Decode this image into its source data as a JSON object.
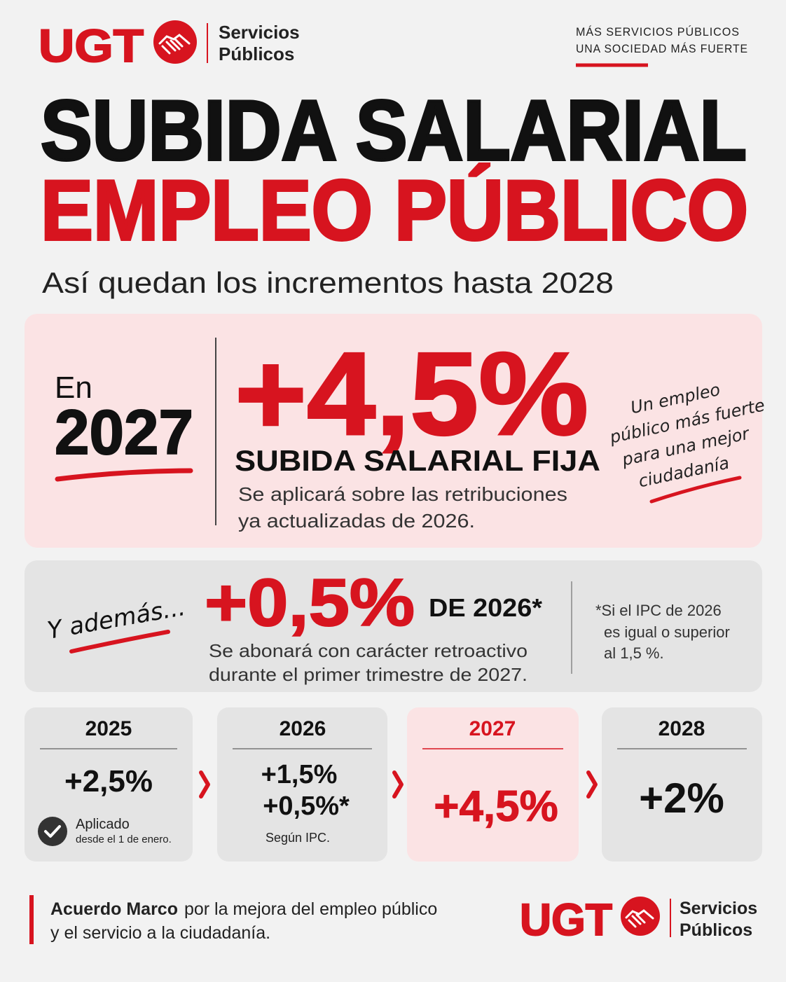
{
  "header": {
    "brand": "UGT",
    "unit_line1": "Servicios",
    "unit_line2": "Públicos",
    "slogan_line1": "MÁS SERVICIOS PÚBLICOS",
    "slogan_line2": "UNA SOCIEDAD MÁS FUERTE"
  },
  "title": {
    "line1": "SUBIDA SALARIAL",
    "line2": "EMPLEO PÚBLICO",
    "subtitle": "Así quedan los incrementos hasta 2028"
  },
  "main_box": {
    "prefix": "En",
    "year": "2027",
    "increase": "+4,5%",
    "label": "SUBIDA SALARIAL FIJA",
    "note_line1": "Se aplicará sobre las retribuciones",
    "note_line2": "ya actualizadas de 2026.",
    "handwritten": [
      "Un empleo",
      "público más fuerte",
      "para una mejor",
      "ciudadanía"
    ]
  },
  "extra_box": {
    "lead": "Y además...",
    "increase": "+0,5%",
    "of": "DE 2026*",
    "note_line1": "Se abonará con carácter retroactivo",
    "note_line2": "durante el primer trimestre de 2027.",
    "footnote": [
      "*Si el IPC de 2026",
      "es igual o superior",
      "al 1,5 %."
    ]
  },
  "timeline": [
    {
      "year": "2025",
      "values": [
        "+2,5%"
      ],
      "notes": [
        "Aplicado",
        "desde el 1 de enero."
      ]
    },
    {
      "year": "2026",
      "values": [
        "+1,5%",
        "+0,5%*"
      ],
      "notes": [
        "Según IPC."
      ]
    },
    {
      "year": "2027",
      "values": [
        "+4,5%"
      ]
    },
    {
      "year": "2028",
      "values": [
        "+2%"
      ]
    }
  ],
  "footer": {
    "bold": "Acuerdo Marco",
    "rest": "por la mejora del empleo público",
    "line2": "y el servicio a la ciudadanía.",
    "brand": "UGT",
    "unit_line1": "Servicios",
    "unit_line2": "Públicos"
  }
}
